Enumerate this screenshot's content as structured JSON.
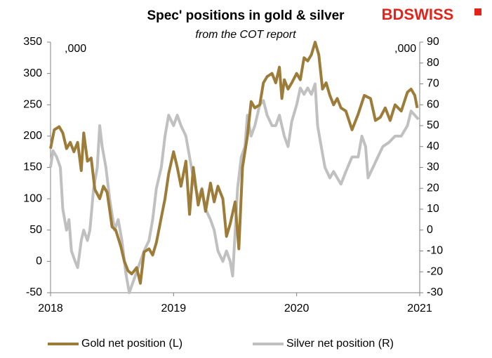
{
  "chart_data": {
    "type": "line",
    "title": "Spec' positions in gold & silver",
    "subtitle": "from the COT report",
    "logo": "BDSWISS",
    "annotations": [
      ",000",
      ",000"
    ],
    "xlim": [
      2018,
      2021
    ],
    "xticks": [
      2018,
      2019,
      2020,
      2021
    ],
    "ylim": [
      -50,
      350
    ],
    "yticks": [
      -50,
      0,
      50,
      100,
      150,
      200,
      250,
      300,
      350
    ],
    "y2lim": [
      -30,
      90
    ],
    "y2ticks": [
      -30,
      -20,
      -10,
      0,
      10,
      20,
      30,
      40,
      50,
      60,
      70,
      80,
      90
    ],
    "legend": "bottom",
    "series": [
      {
        "name": "Gold net position (L)",
        "color": "#9c7c38",
        "axis": "y",
        "x": [
          2018.0,
          2018.03,
          2018.07,
          2018.1,
          2018.13,
          2018.16,
          2018.19,
          2018.22,
          2018.25,
          2018.27,
          2018.3,
          2018.33,
          2018.36,
          2018.4,
          2018.43,
          2018.46,
          2018.5,
          2018.53,
          2018.57,
          2018.6,
          2018.63,
          2018.66,
          2018.7,
          2018.73,
          2018.76,
          2018.8,
          2018.83,
          2018.86,
          2018.9,
          2018.93,
          2018.96,
          2019.0,
          2019.03,
          2019.06,
          2019.1,
          2019.13,
          2019.16,
          2019.2,
          2019.23,
          2019.26,
          2019.3,
          2019.33,
          2019.36,
          2019.4,
          2019.43,
          2019.46,
          2019.5,
          2019.53,
          2019.56,
          2019.6,
          2019.63,
          2019.66,
          2019.7,
          2019.73,
          2019.76,
          2019.8,
          2019.83,
          2019.86,
          2019.88,
          2019.9,
          2019.93,
          2019.96,
          2020.0,
          2020.03,
          2020.06,
          2020.09,
          2020.12,
          2020.15,
          2020.18,
          2020.21,
          2020.24,
          2020.27,
          2020.3,
          2020.33,
          2020.36,
          2020.4,
          2020.45,
          2020.5,
          2020.55,
          2020.6,
          2020.64,
          2020.68,
          2020.72,
          2020.76,
          2020.8,
          2020.85,
          2020.9,
          2020.93,
          2020.96,
          2020.98
        ],
        "values": [
          180,
          210,
          215,
          205,
          180,
          190,
          175,
          190,
          145,
          205,
          160,
          165,
          115,
          100,
          120,
          110,
          55,
          50,
          25,
          0,
          -15,
          -20,
          -10,
          -35,
          15,
          20,
          10,
          30,
          70,
          100,
          140,
          175,
          150,
          120,
          160,
          75,
          150,
          90,
          115,
          80,
          125,
          95,
          120,
          100,
          40,
          60,
          95,
          20,
          150,
          200,
          255,
          245,
          250,
          285,
          295,
          300,
          285,
          310,
          260,
          290,
          275,
          285,
          300,
          290,
          325,
          320,
          330,
          350,
          330,
          275,
          285,
          265,
          250,
          260,
          245,
          240,
          210,
          235,
          265,
          260,
          225,
          230,
          245,
          225,
          250,
          240,
          270,
          275,
          265,
          245
        ]
      },
      {
        "name": "Silver net position (R)",
        "color": "#c0c0c0",
        "axis": "y2",
        "x": [
          2018.0,
          2018.02,
          2018.05,
          2018.08,
          2018.1,
          2018.13,
          2018.15,
          2018.17,
          2018.2,
          2018.22,
          2018.25,
          2018.27,
          2018.3,
          2018.32,
          2018.35,
          2018.38,
          2018.4,
          2018.42,
          2018.45,
          2018.48,
          2018.52,
          2018.55,
          2018.58,
          2018.61,
          2018.64,
          2018.67,
          2018.7,
          2018.73,
          2018.76,
          2018.8,
          2018.83,
          2018.86,
          2018.9,
          2018.93,
          2018.96,
          2019.0,
          2019.03,
          2019.06,
          2019.1,
          2019.13,
          2019.16,
          2019.2,
          2019.23,
          2019.26,
          2019.3,
          2019.33,
          2019.36,
          2019.4,
          2019.43,
          2019.46,
          2019.48,
          2019.52,
          2019.55,
          2019.58,
          2019.6,
          2019.63,
          2019.66,
          2019.7,
          2019.73,
          2019.76,
          2019.8,
          2019.83,
          2019.86,
          2019.9,
          2019.93,
          2019.96,
          2020.0,
          2020.03,
          2020.06,
          2020.09,
          2020.12,
          2020.15,
          2020.17,
          2020.2,
          2020.23,
          2020.27,
          2020.3,
          2020.33,
          2020.36,
          2020.4,
          2020.45,
          2020.5,
          2020.53,
          2020.56,
          2020.58,
          2020.62,
          2020.66,
          2020.7,
          2020.75,
          2020.8,
          2020.85,
          2020.9,
          2020.93,
          2020.96,
          2020.99
        ],
        "values": [
          30,
          38,
          35,
          30,
          10,
          0,
          5,
          -10,
          -15,
          -18,
          -5,
          0,
          -5,
          0,
          20,
          30,
          50,
          40,
          30,
          15,
          0,
          5,
          -5,
          -20,
          -30,
          -25,
          -20,
          -15,
          -10,
          -5,
          5,
          20,
          30,
          45,
          55,
          50,
          55,
          50,
          45,
          35,
          25,
          15,
          20,
          10,
          5,
          0,
          -10,
          -15,
          -10,
          -15,
          -22,
          20,
          35,
          40,
          55,
          45,
          50,
          60,
          62,
          55,
          50,
          50,
          55,
          45,
          40,
          52,
          60,
          68,
          65,
          68,
          65,
          70,
          50,
          40,
          30,
          25,
          28,
          25,
          22,
          28,
          35,
          35,
          45,
          40,
          25,
          30,
          35,
          40,
          42,
          45,
          45,
          50,
          57,
          55,
          53
        ]
      }
    ]
  }
}
